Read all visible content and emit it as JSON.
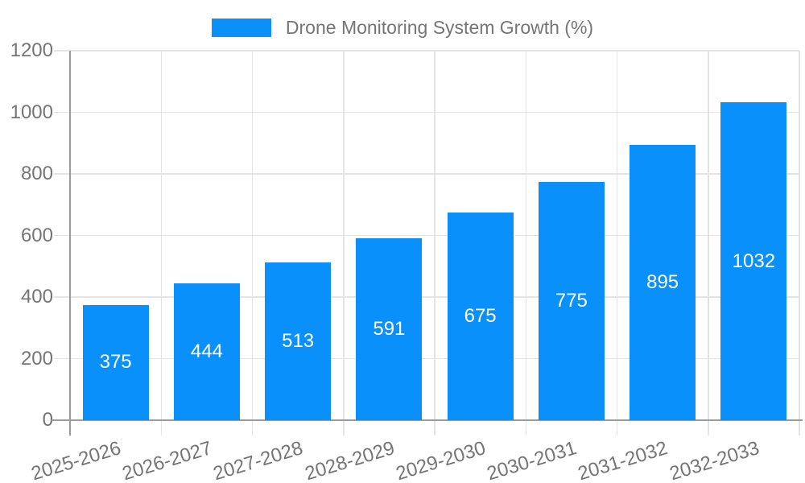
{
  "legend": {
    "label": "Drone Monitoring System Growth (%)"
  },
  "chart_data": {
    "type": "bar",
    "title": "",
    "xlabel": "",
    "ylabel": "",
    "series_name": "Drone Monitoring System Growth (%)",
    "categories": [
      "2025-2026",
      "2026-2027",
      "2027-2028",
      "2028-2029",
      "2029-2030",
      "2030-2031",
      "2031-2032",
      "2032-2033"
    ],
    "values": [
      375,
      444,
      513,
      591,
      675,
      775,
      895,
      1032
    ],
    "value_labels_shown": true,
    "ylim": [
      0,
      1200
    ],
    "yticks": [
      0,
      200,
      400,
      600,
      800,
      1000,
      1200
    ],
    "grid": true,
    "legend_position": "top"
  },
  "colors": {
    "bar": "#0990FB",
    "grid": "#E4E4E4",
    "axis": "#9C9C9C",
    "tick_text": "#757575",
    "bar_label": "#FFFFFF",
    "background": "#FFFFFF"
  }
}
